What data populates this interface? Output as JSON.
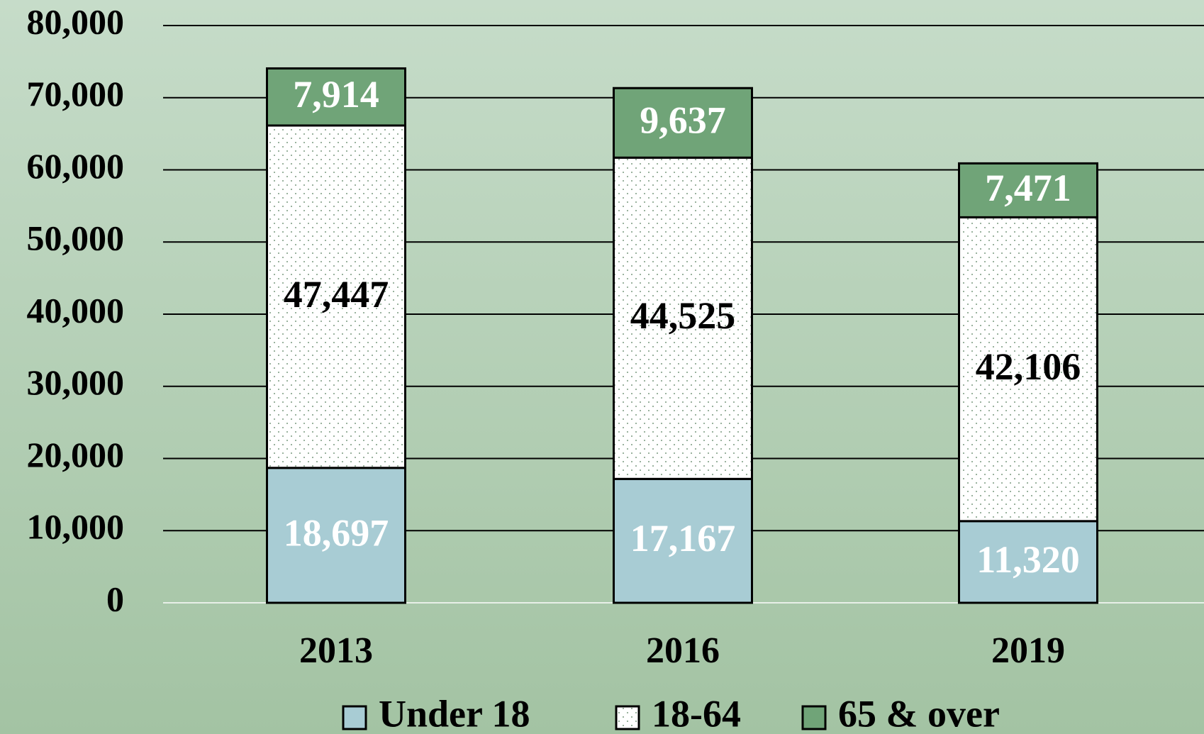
{
  "chart_data": {
    "type": "stacked_bar",
    "categories": [
      "2013",
      "2016",
      "2019"
    ],
    "series": [
      {
        "name": "Under 18",
        "color": "#a8ccd4",
        "values": [
          18697,
          17167,
          11320
        ],
        "value_labels": [
          "18,697",
          "17,167",
          "11,320"
        ]
      },
      {
        "name": "18-64",
        "color": "#ffffff",
        "values": [
          47447,
          44525,
          42106
        ],
        "value_labels": [
          "47,447",
          "44,525",
          "42,106"
        ]
      },
      {
        "name": "65 & over",
        "color": "#70a478",
        "values": [
          7914,
          9637,
          7471
        ],
        "value_labels": [
          "7,914",
          "9,637",
          "7,471"
        ]
      }
    ],
    "ylim": [
      0,
      80000
    ],
    "yticks": [
      0,
      {
        "value": 10000,
        "label": "10,000"
      },
      {
        "value": 20000,
        "label": "20,000"
      },
      {
        "value": 30000,
        "label": "30,000"
      },
      {
        "value": 40000,
        "label": "40,000"
      },
      {
        "value": 50000,
        "label": "50,000"
      },
      {
        "value": 60000,
        "label": "60,000"
      },
      {
        "value": 70000,
        "label": "70,000"
      },
      {
        "value": 80000,
        "label": "80,000"
      }
    ],
    "grid": true,
    "legend": "bottom"
  }
}
